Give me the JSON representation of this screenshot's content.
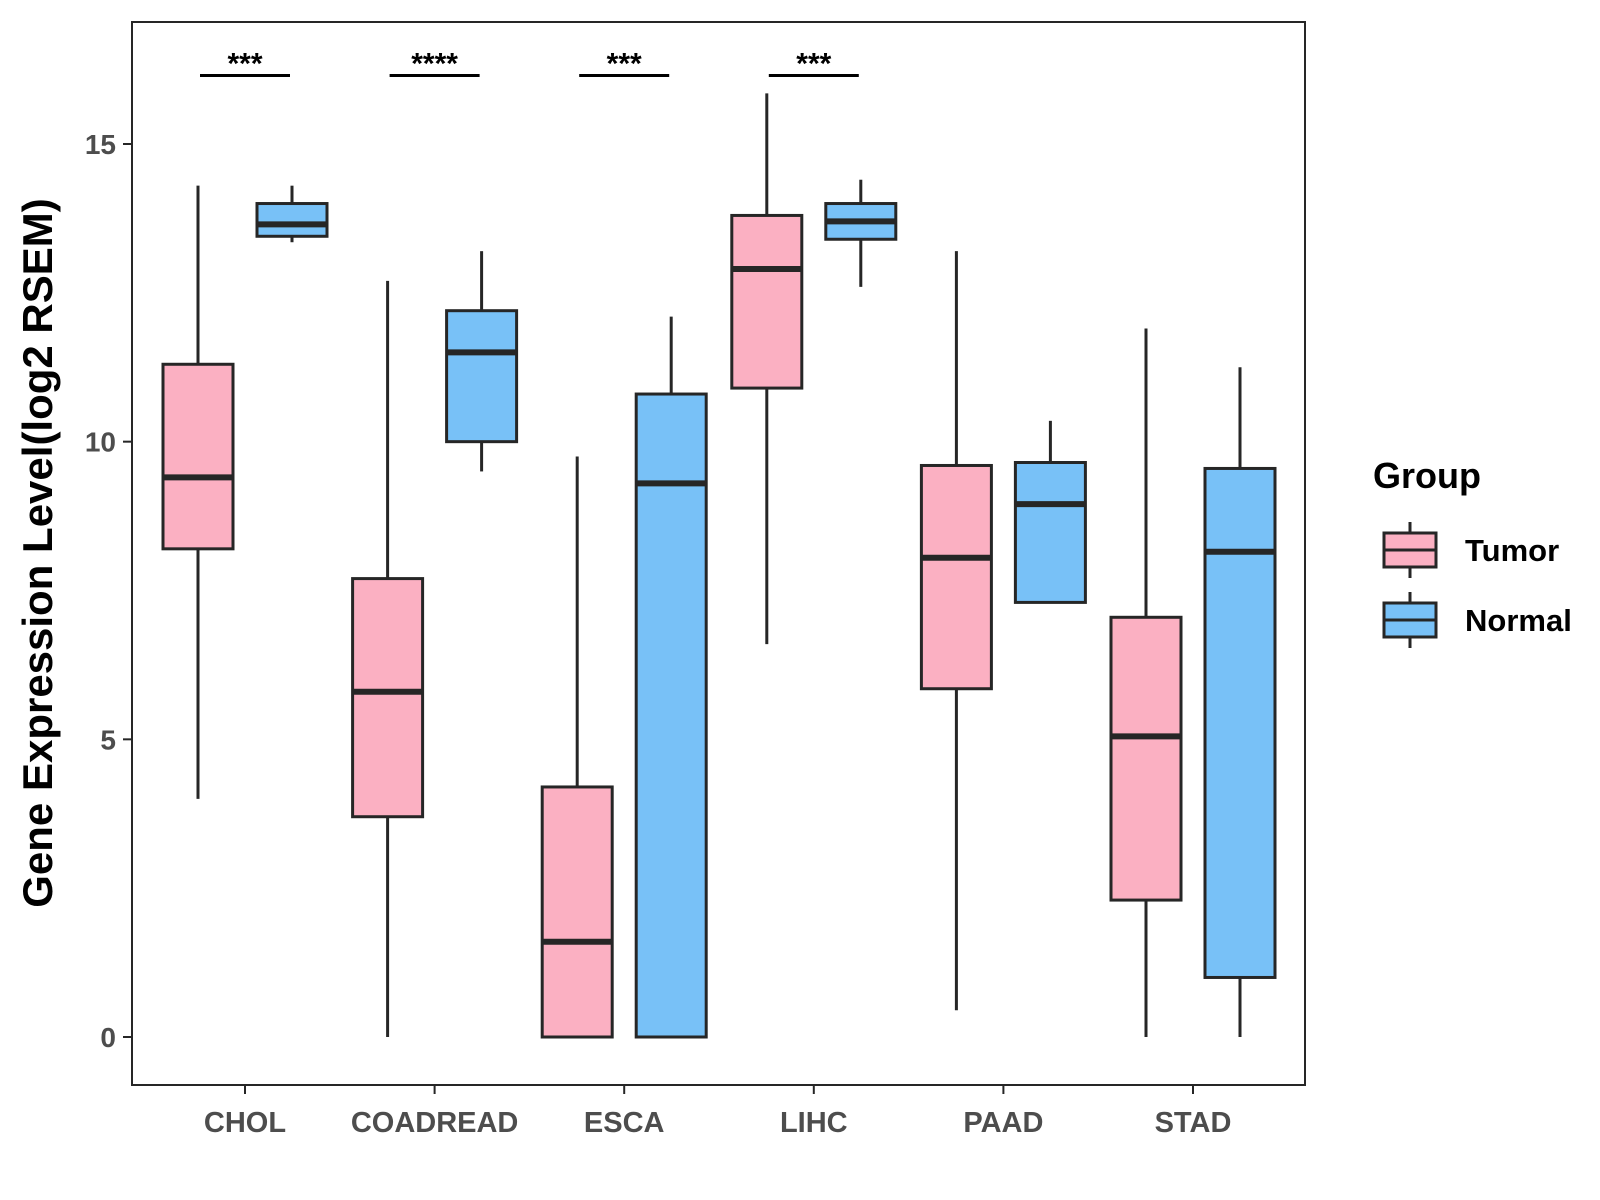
{
  "chart_data": {
    "type": "boxplot",
    "title": "",
    "xlabel": "",
    "ylabel": "Gene Expression Level(log2 RSEM)",
    "ylim": [
      -0.8,
      17.0
    ],
    "yticks": [
      0,
      5,
      10,
      15
    ],
    "categories": [
      "CHOL",
      "COADREAD",
      "ESCA",
      "LIHC",
      "PAAD",
      "STAD"
    ],
    "grid": false,
    "legend": {
      "title": "Group",
      "position": "right",
      "entries": [
        "Tumor",
        "Normal"
      ]
    },
    "colors": {
      "Tumor": "#FBB0C2",
      "Normal": "#78C1F7",
      "stroke": "#262626"
    },
    "series": [
      {
        "name": "Tumor",
        "boxes": [
          {
            "category": "CHOL",
            "min": 4.0,
            "q1": 8.2,
            "median": 9.4,
            "q3": 11.3,
            "max": 14.3
          },
          {
            "category": "COADREAD",
            "min": 0.0,
            "q1": 3.7,
            "median": 5.8,
            "q3": 7.7,
            "max": 12.7
          },
          {
            "category": "ESCA",
            "min": 0.0,
            "q1": 0.0,
            "median": 1.6,
            "q3": 4.2,
            "max": 9.75
          },
          {
            "category": "LIHC",
            "min": 6.6,
            "q1": 10.9,
            "median": 12.9,
            "q3": 13.8,
            "max": 15.85
          },
          {
            "category": "PAAD",
            "min": 0.45,
            "q1": 5.85,
            "median": 8.05,
            "q3": 9.6,
            "max": 13.2
          },
          {
            "category": "STAD",
            "min": 0.0,
            "q1": 2.3,
            "median": 5.05,
            "q3": 7.05,
            "max": 11.9
          }
        ]
      },
      {
        "name": "Normal",
        "boxes": [
          {
            "category": "CHOL",
            "min": 13.35,
            "q1": 13.45,
            "median": 13.65,
            "q3": 14.0,
            "max": 14.3
          },
          {
            "category": "COADREAD",
            "min": 9.5,
            "q1": 10.0,
            "median": 11.5,
            "q3": 12.2,
            "max": 13.2
          },
          {
            "category": "ESCA",
            "min": 0.0,
            "q1": 0.0,
            "median": 9.3,
            "q3": 10.8,
            "max": 12.1
          },
          {
            "category": "LIHC",
            "min": 12.6,
            "q1": 13.4,
            "median": 13.7,
            "q3": 14.0,
            "max": 14.4
          },
          {
            "category": "PAAD",
            "min": 7.3,
            "q1": 7.3,
            "median": 8.95,
            "q3": 9.65,
            "max": 10.35
          },
          {
            "category": "STAD",
            "min": 0.0,
            "q1": 1.0,
            "median": 8.15,
            "q3": 9.55,
            "max": 11.25
          }
        ]
      }
    ],
    "significance": [
      {
        "category": "CHOL",
        "label": "***",
        "y": 16.15
      },
      {
        "category": "COADREAD",
        "label": "****",
        "y": 16.15
      },
      {
        "category": "ESCA",
        "label": "***",
        "y": 16.15
      },
      {
        "category": "LIHC",
        "label": "***",
        "y": 16.15
      }
    ]
  }
}
